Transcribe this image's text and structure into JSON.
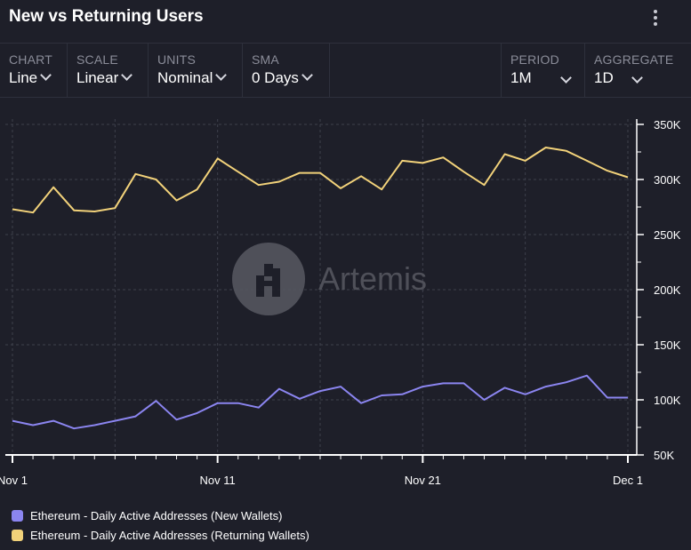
{
  "header": {
    "title": "New vs Returning Users",
    "menu_icon": "more-vertical-icon"
  },
  "controls": {
    "chart": {
      "label": "CHART",
      "value": "Line"
    },
    "scale": {
      "label": "SCALE",
      "value": "Linear"
    },
    "units": {
      "label": "UNITS",
      "value": "Nominal"
    },
    "sma": {
      "label": "SMA",
      "value": "0 Days"
    },
    "period": {
      "label": "PERIOD",
      "value": "1M"
    },
    "aggregate": {
      "label": "AGGREGATE",
      "value": "1D"
    }
  },
  "watermark": {
    "text": "Artemis"
  },
  "colors": {
    "new_wallets": "#8b85f0",
    "returning_wallets": "#f2d27a",
    "background": "#1e1f29"
  },
  "chart_data": {
    "type": "line",
    "x_axis": {
      "ticks": [
        "Nov 1",
        "Nov 11",
        "Nov 21",
        "Dec 1"
      ],
      "start": "2023-11-01",
      "end": "2023-12-01"
    },
    "y_axis": {
      "position": "right",
      "ylim": [
        50000,
        350000
      ],
      "ticks": [
        "50K",
        "100K",
        "150K",
        "200K",
        "250K",
        "300K",
        "350K"
      ]
    },
    "grid": true,
    "legend": "bottom-left",
    "series": [
      {
        "name": "Ethereum - Daily Active Addresses (New Wallets)",
        "color": "#8b85f0",
        "values": [
          81000,
          77000,
          81000,
          74000,
          77000,
          81000,
          85000,
          99000,
          82000,
          88000,
          97000,
          97000,
          93000,
          110000,
          101000,
          108000,
          112000,
          97000,
          104000,
          105000,
          112000,
          115000,
          115000,
          100000,
          111000,
          105000,
          112000,
          116000,
          122000,
          102000,
          102000
        ]
      },
      {
        "name": "Ethereum - Daily Active Addresses (Returning Wallets)",
        "color": "#f2d27a",
        "values": [
          273000,
          270000,
          293000,
          272000,
          271000,
          274000,
          305000,
          300000,
          281000,
          291000,
          319000,
          307000,
          295000,
          298000,
          306000,
          306000,
          292000,
          303000,
          291000,
          317000,
          315000,
          320000,
          307000,
          295000,
          323000,
          317000,
          329000,
          326000,
          317000,
          308000,
          302000
        ]
      }
    ]
  }
}
